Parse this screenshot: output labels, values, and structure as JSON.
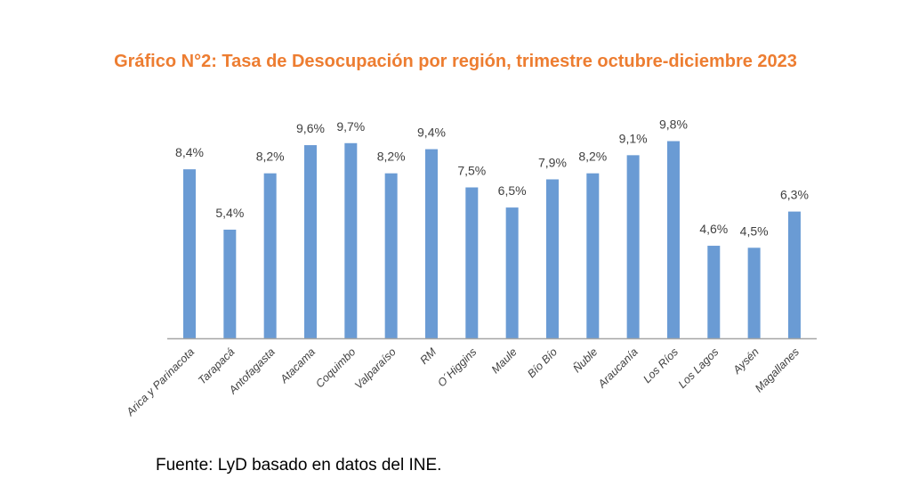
{
  "chart_data": {
    "type": "bar",
    "title": "Gráfico N°2: Tasa de Desocupación por región, trimestre octubre-diciembre 2023",
    "xlabel": "",
    "ylabel": "",
    "ylim": [
      0,
      10
    ],
    "grid": false,
    "categories": [
      "Arica y Parinacota",
      "Tarapacá",
      "Antofagasta",
      "Atacama",
      "Coquimbo",
      "Valparaíso",
      "RM",
      "O´Higgins",
      "Maule",
      "Bío Bío",
      "Ñuble",
      "Araucanía",
      "Los Ríos",
      "Los Lagos",
      "Aysén",
      "Magallanes"
    ],
    "values": [
      8.4,
      5.4,
      8.2,
      9.6,
      9.7,
      8.2,
      9.4,
      7.5,
      6.5,
      7.9,
      8.2,
      9.1,
      9.8,
      4.6,
      4.5,
      6.3
    ],
    "data_labels": [
      "8,4%",
      "5,4%",
      "8,2%",
      "9,6%",
      "9,7%",
      "8,2%",
      "9,4%",
      "7,5%",
      "6,5%",
      "7,9%",
      "8,2%",
      "9,1%",
      "9,8%",
      "4,6%",
      "4,5%",
      "6,3%"
    ],
    "bar_color": "#6A9BD4"
  },
  "source": "Fuente: LyD basado en datos del INE."
}
